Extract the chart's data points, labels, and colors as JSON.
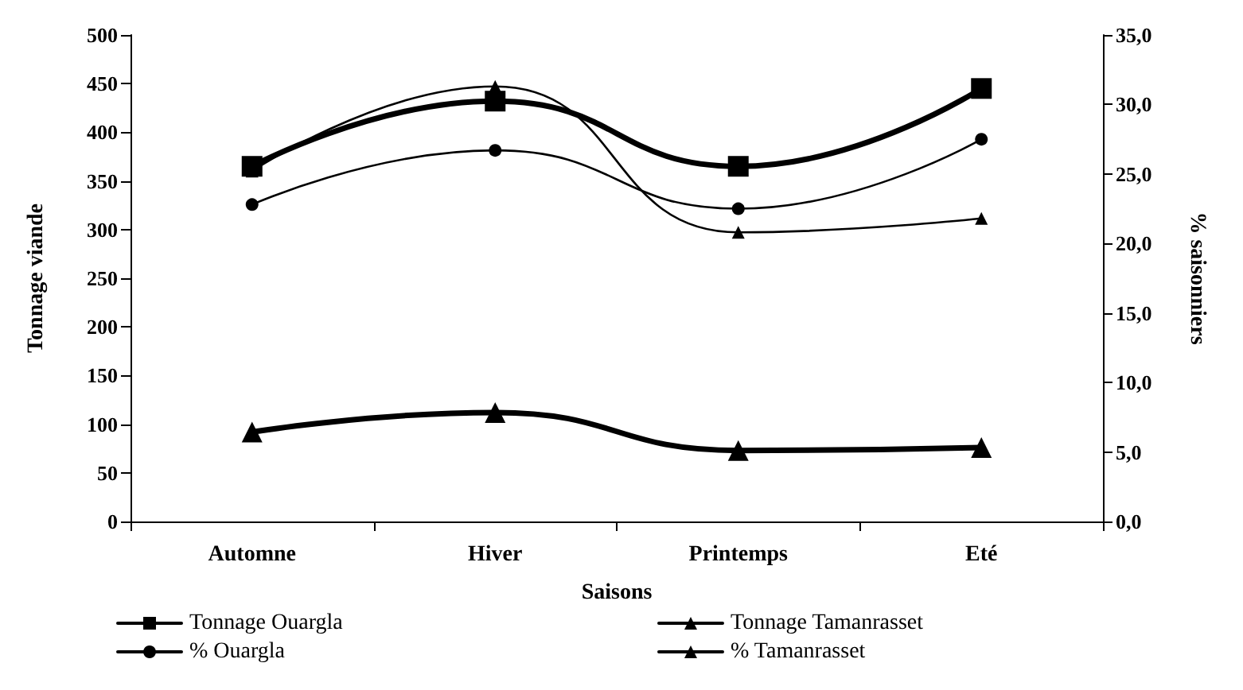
{
  "chart_data": {
    "type": "line",
    "xlabel": "Saisons",
    "ylabel": "Tonnage viande",
    "y2label": "% saisonniers",
    "categories": [
      "Automne",
      "Hiver",
      "Printemps",
      "Eté"
    ],
    "series": [
      {
        "name": "Tonnage Ouargla",
        "color": "#000000",
        "values": [
          365,
          432,
          365,
          445
        ],
        "marker": "square"
      },
      {
        "name": "Tonnage Tamanrasset",
        "color": "#000000",
        "values": [
          92,
          112,
          73,
          76
        ],
        "marker": "triangle"
      },
      {
        "name": "% Ouargla",
        "color": "#000000",
        "values": [
          22.8,
          26.7,
          22.5,
          27.5
        ],
        "marker": "circle",
        "axis": "y2"
      },
      {
        "name": "% Tamanrasset",
        "color": "#000000",
        "values": [
          25.2,
          31.3,
          20.8,
          21.8
        ],
        "marker": "triangle",
        "axis": "y2"
      }
    ],
    "ylim": [
      0,
      500
    ],
    "yticks": [
      0,
      50,
      100,
      150,
      200,
      250,
      300,
      350,
      400,
      450,
      500
    ],
    "y2lim": [
      0,
      35
    ],
    "y2ticks": [
      {
        "value": 0,
        "label": "0,0"
      },
      {
        "value": 5,
        "label": "5,0"
      },
      {
        "value": 10,
        "label": "10,0"
      },
      {
        "value": 15,
        "label": "15,0"
      },
      {
        "value": 20,
        "label": "20,0"
      },
      {
        "value": 25,
        "label": "25,0"
      },
      {
        "value": 30,
        "label": "30,0"
      },
      {
        "value": 35,
        "label": "35,0"
      }
    ],
    "grid": false,
    "legend": "bottom",
    "line_style": "solid"
  }
}
